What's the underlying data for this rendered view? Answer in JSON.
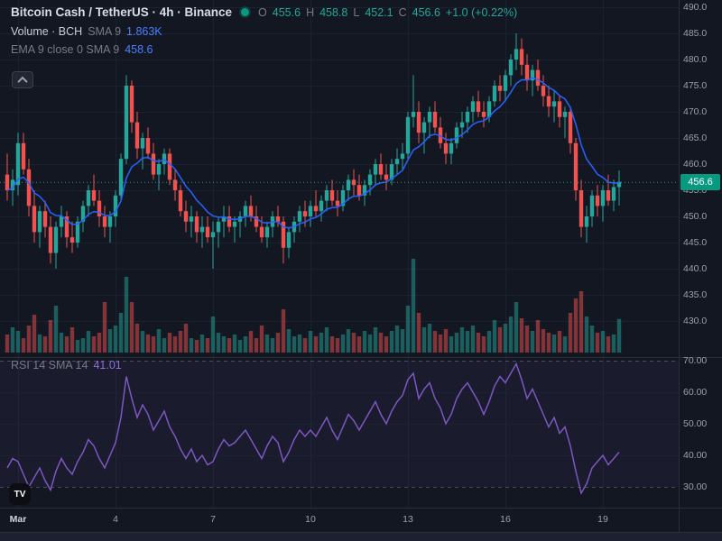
{
  "header": {
    "title": "Bitcoin Cash / TetherUS · 4h · Binance",
    "ohlc": {
      "o_label": "O",
      "o": "455.6",
      "h_label": "H",
      "h": "458.8",
      "l_label": "L",
      "l": "452.1",
      "c_label": "C",
      "c": "456.6",
      "change": "+1.0 (+0.22%)"
    },
    "volume_row": {
      "label": "Volume · BCH",
      "param": "SMA 9",
      "value": "1.863K"
    },
    "ema_row": {
      "label": "EMA 9 close 0 SMA 9",
      "value": "458.6"
    }
  },
  "rsi_row": {
    "label": "RSI 14 SMA 14",
    "value": "41.01"
  },
  "price_scale": {
    "current_price_label": "456.6",
    "current_price": 456.6
  },
  "time_axis": {
    "ticks": [
      {
        "label": "Mar",
        "i": 2
      },
      {
        "label": "4",
        "i": 20
      },
      {
        "label": "7",
        "i": 38
      },
      {
        "label": "10",
        "i": 56
      },
      {
        "label": "13",
        "i": 74
      },
      {
        "label": "16",
        "i": 92
      },
      {
        "label": "19",
        "i": 110
      }
    ]
  },
  "logo_text": "TV",
  "colors": {
    "bg": "#131722",
    "grid": "#1c2131",
    "up": "#26a69a",
    "down": "#ef5350",
    "ema": "#2962ff",
    "rsi": "#7e57c2",
    "badge": "#089981",
    "axis_text": "#9aa0aa",
    "muted": "#787b86",
    "text": "#d1d4dc",
    "blue_value": "#4a7dff"
  },
  "chart_data": [
    {
      "type": "candlestick",
      "title": "Bitcoin Cash / TetherUS",
      "exchange": "Binance",
      "interval": "4h",
      "x_start_label": "Mar",
      "ema_period": 9,
      "ylim": [
        430,
        490
      ],
      "yticks": [
        490,
        485,
        480,
        475,
        470,
        465,
        460,
        455,
        450,
        445,
        440,
        435,
        430
      ],
      "ohlc": [
        [
          458,
          462,
          453,
          455
        ],
        [
          455,
          459,
          452,
          457
        ],
        [
          456,
          466,
          454,
          464
        ],
        [
          464,
          466,
          458,
          459
        ],
        [
          459,
          461,
          450,
          452
        ],
        [
          452,
          455,
          445,
          447
        ],
        [
          447,
          452,
          444,
          451
        ],
        [
          451,
          453,
          446,
          448
        ],
        [
          448,
          450,
          441,
          443
        ],
        [
          443,
          449,
          440,
          448
        ],
        [
          448,
          452,
          446,
          450
        ],
        [
          450,
          451,
          444,
          446
        ],
        [
          446,
          449,
          443,
          445
        ],
        [
          445,
          450,
          444,
          449
        ],
        [
          449,
          453,
          447,
          452
        ],
        [
          452,
          456,
          450,
          455
        ],
        [
          455,
          458,
          452,
          453
        ],
        [
          453,
          455,
          448,
          450
        ],
        [
          450,
          452,
          446,
          448
        ],
        [
          448,
          451,
          445,
          450
        ],
        [
          450,
          455,
          448,
          454
        ],
        [
          454,
          462,
          453,
          461
        ],
        [
          461,
          477,
          460,
          475
        ],
        [
          475,
          476,
          466,
          468
        ],
        [
          468,
          470,
          461,
          463
        ],
        [
          463,
          466,
          459,
          465
        ],
        [
          465,
          467,
          461,
          462
        ],
        [
          462,
          464,
          457,
          458
        ],
        [
          458,
          461,
          455,
          460
        ],
        [
          460,
          463,
          458,
          462
        ],
        [
          462,
          463,
          456,
          457
        ],
        [
          457,
          459,
          453,
          455
        ],
        [
          455,
          456,
          450,
          451
        ],
        [
          451,
          453,
          447,
          449
        ],
        [
          449,
          452,
          446,
          450
        ],
        [
          450,
          451,
          445,
          447
        ],
        [
          447,
          450,
          444,
          448
        ],
        [
          448,
          450,
          445,
          446
        ],
        [
          446,
          449,
          440,
          447
        ],
        [
          447,
          450,
          444,
          449
        ],
        [
          449,
          452,
          446,
          450
        ],
        [
          450,
          452,
          447,
          448
        ],
        [
          448,
          450,
          445,
          449
        ],
        [
          449,
          451,
          446,
          450
        ],
        [
          450,
          453,
          448,
          452
        ],
        [
          452,
          454,
          449,
          450
        ],
        [
          450,
          452,
          447,
          448
        ],
        [
          448,
          450,
          445,
          446
        ],
        [
          446,
          449,
          444,
          448
        ],
        [
          448,
          451,
          446,
          450
        ],
        [
          450,
          452,
          448,
          449
        ],
        [
          449,
          450,
          441,
          444
        ],
        [
          444,
          448,
          442,
          447
        ],
        [
          447,
          450,
          445,
          449
        ],
        [
          449,
          452,
          447,
          451
        ],
        [
          451,
          453,
          448,
          450
        ],
        [
          450,
          453,
          448,
          452
        ],
        [
          452,
          455,
          450,
          451
        ],
        [
          451,
          454,
          449,
          453
        ],
        [
          453,
          456,
          451,
          455
        ],
        [
          455,
          457,
          452,
          453
        ],
        [
          453,
          455,
          450,
          452
        ],
        [
          452,
          456,
          451,
          455
        ],
        [
          455,
          458,
          453,
          457
        ],
        [
          457,
          459,
          454,
          456
        ],
        [
          456,
          458,
          453,
          454
        ],
        [
          454,
          457,
          452,
          456
        ],
        [
          456,
          459,
          454,
          458
        ],
        [
          458,
          461,
          456,
          460
        ],
        [
          460,
          462,
          457,
          458
        ],
        [
          458,
          460,
          455,
          457
        ],
        [
          457,
          461,
          456,
          460
        ],
        [
          460,
          463,
          458,
          461
        ],
        [
          461,
          464,
          459,
          462
        ],
        [
          462,
          470,
          461,
          469
        ],
        [
          469,
          477,
          467,
          470
        ],
        [
          470,
          472,
          464,
          466
        ],
        [
          466,
          469,
          462,
          468
        ],
        [
          468,
          471,
          465,
          470
        ],
        [
          470,
          472,
          466,
          467
        ],
        [
          467,
          469,
          463,
          464
        ],
        [
          464,
          466,
          460,
          462
        ],
        [
          462,
          465,
          460,
          464
        ],
        [
          464,
          468,
          463,
          467
        ],
        [
          467,
          470,
          465,
          468
        ],
        [
          468,
          471,
          466,
          470
        ],
        [
          470,
          473,
          468,
          472
        ],
        [
          472,
          474,
          469,
          470
        ],
        [
          470,
          472,
          467,
          469
        ],
        [
          469,
          473,
          468,
          472
        ],
        [
          472,
          476,
          471,
          475
        ],
        [
          475,
          477,
          472,
          474
        ],
        [
          474,
          478,
          472,
          477
        ],
        [
          477,
          481,
          475,
          480
        ],
        [
          480,
          485,
          478,
          482
        ],
        [
          482,
          484,
          477,
          479
        ],
        [
          479,
          481,
          474,
          476
        ],
        [
          476,
          479,
          473,
          478
        ],
        [
          478,
          480,
          474,
          475
        ],
        [
          475,
          477,
          471,
          473
        ],
        [
          473,
          475,
          469,
          471
        ],
        [
          471,
          474,
          468,
          472
        ],
        [
          472,
          473,
          467,
          469
        ],
        [
          469,
          471,
          465,
          470
        ],
        [
          470,
          471,
          462,
          464
        ],
        [
          464,
          465,
          453,
          455
        ],
        [
          455,
          457,
          446,
          448
        ],
        [
          448,
          452,
          445,
          450
        ],
        [
          450,
          455,
          448,
          454
        ],
        [
          454,
          456,
          450,
          452
        ],
        [
          452,
          456,
          449,
          455
        ],
        [
          455,
          458,
          452,
          453
        ],
        [
          453,
          457,
          451,
          455.6
        ],
        [
          455.6,
          458.8,
          452.1,
          456.6
        ]
      ]
    },
    {
      "type": "bar",
      "name": "Volume",
      "unit": "K",
      "current_value_label": "1.863K",
      "values": [
        1.0,
        1.4,
        1.2,
        0.8,
        1.5,
        2.1,
        1.0,
        0.9,
        1.8,
        2.6,
        1.1,
        0.9,
        1.4,
        0.7,
        0.8,
        1.2,
        0.9,
        1.1,
        2.8,
        1.3,
        1.5,
        2.2,
        4.2,
        2.8,
        1.6,
        1.2,
        1.0,
        0.9,
        1.3,
        0.8,
        1.1,
        0.9,
        1.2,
        1.6,
        0.8,
        0.7,
        1.0,
        0.8,
        2.0,
        1.1,
        0.9,
        0.8,
        1.0,
        0.7,
        0.9,
        1.2,
        0.8,
        1.5,
        1.0,
        0.8,
        1.1,
        2.4,
        1.3,
        0.9,
        1.0,
        0.8,
        1.2,
        0.9,
        1.1,
        1.4,
        0.9,
        0.8,
        1.0,
        1.3,
        1.1,
        0.9,
        1.2,
        1.0,
        1.4,
        1.1,
        0.9,
        1.2,
        1.5,
        1.3,
        2.6,
        5.2,
        2.2,
        1.4,
        1.6,
        1.2,
        1.0,
        1.3,
        0.9,
        1.1,
        1.4,
        1.2,
        1.5,
        1.1,
        0.9,
        1.2,
        1.8,
        1.4,
        1.6,
        2.0,
        2.8,
        1.9,
        1.5,
        1.2,
        1.8,
        1.3,
        1.1,
        1.0,
        1.2,
        0.9,
        2.2,
        3.0,
        3.4,
        2.0,
        1.5,
        1.1,
        1.2,
        0.9,
        1.0,
        1.863
      ]
    },
    {
      "type": "line",
      "name": "RSI 14",
      "current_value": 41.01,
      "ylim": [
        25,
        75
      ],
      "yticks": [
        70,
        60,
        50,
        40,
        30
      ],
      "levels": [
        70,
        30
      ],
      "values": [
        36,
        39,
        38,
        34,
        30,
        33,
        36,
        32,
        29,
        35,
        39,
        36,
        34,
        38,
        41,
        45,
        43,
        39,
        36,
        40,
        44,
        52,
        65,
        58,
        52,
        56,
        53,
        48,
        51,
        54,
        49,
        46,
        42,
        39,
        42,
        38,
        40,
        37,
        38,
        42,
        45,
        43,
        44,
        46,
        48,
        45,
        42,
        39,
        43,
        46,
        44,
        38,
        41,
        45,
        48,
        46,
        48,
        46,
        49,
        52,
        48,
        45,
        49,
        53,
        51,
        48,
        51,
        54,
        57,
        53,
        50,
        54,
        57,
        59,
        64,
        66,
        58,
        61,
        63,
        58,
        55,
        50,
        53,
        58,
        61,
        63,
        60,
        57,
        53,
        57,
        62,
        65,
        63,
        66,
        69,
        64,
        58,
        61,
        57,
        53,
        49,
        52,
        47,
        49,
        43,
        35,
        28,
        31,
        36,
        38,
        40,
        37,
        39,
        41.01
      ]
    }
  ]
}
